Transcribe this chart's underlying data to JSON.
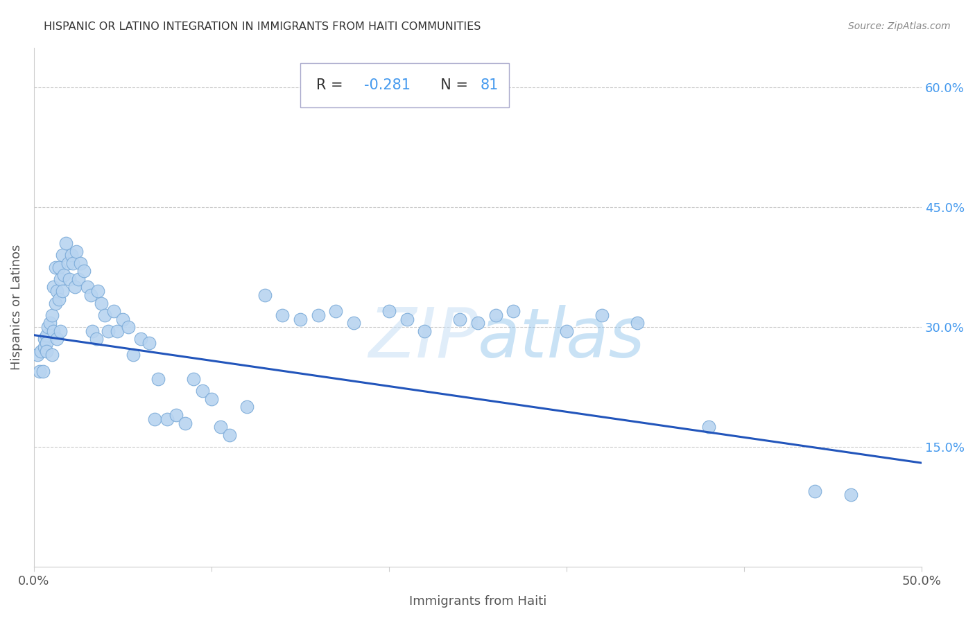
{
  "title": "HISPANIC OR LATINO INTEGRATION IN IMMIGRANTS FROM HAITI COMMUNITIES",
  "source": "Source: ZipAtlas.com",
  "xlabel": "Immigrants from Haiti",
  "ylabel": "Hispanics or Latinos",
  "watermark": "ZIPatlas",
  "R": -0.281,
  "N": 81,
  "xlim": [
    0.0,
    0.5
  ],
  "ylim": [
    0.0,
    0.65
  ],
  "xticks": [
    0.0,
    0.1,
    0.2,
    0.3,
    0.4,
    0.5
  ],
  "xtick_labels": [
    "0.0%",
    "",
    "",
    "",
    "",
    "50.0%"
  ],
  "ytick_positions": [
    0.15,
    0.3,
    0.45,
    0.6
  ],
  "ytick_labels": [
    "15.0%",
    "30.0%",
    "45.0%",
    "60.0%"
  ],
  "scatter_color": "#b8d4f0",
  "scatter_edge_color": "#7aaad8",
  "line_color": "#2255bb",
  "title_color": "#333333",
  "axis_label_color": "#555555",
  "tick_color": "#555555",
  "right_tick_color": "#4499ee",
  "source_color": "#888888",
  "annotation_box_facecolor": "#ffffff",
  "annotation_border_color": "#aaaacc",
  "R_label_color": "#333333",
  "RN_value_color": "#4499ee",
  "scatter_x": [
    0.002,
    0.003,
    0.004,
    0.005,
    0.006,
    0.006,
    0.007,
    0.007,
    0.007,
    0.008,
    0.009,
    0.01,
    0.01,
    0.011,
    0.011,
    0.012,
    0.012,
    0.013,
    0.013,
    0.014,
    0.014,
    0.015,
    0.015,
    0.016,
    0.016,
    0.017,
    0.018,
    0.019,
    0.02,
    0.021,
    0.022,
    0.023,
    0.024,
    0.025,
    0.026,
    0.028,
    0.03,
    0.032,
    0.033,
    0.035,
    0.036,
    0.038,
    0.04,
    0.042,
    0.045,
    0.047,
    0.05,
    0.053,
    0.056,
    0.06,
    0.065,
    0.068,
    0.07,
    0.075,
    0.08,
    0.085,
    0.09,
    0.095,
    0.1,
    0.105,
    0.11,
    0.12,
    0.13,
    0.14,
    0.15,
    0.16,
    0.17,
    0.18,
    0.2,
    0.21,
    0.22,
    0.24,
    0.25,
    0.26,
    0.27,
    0.3,
    0.32,
    0.34,
    0.38,
    0.44,
    0.46
  ],
  "scatter_y": [
    0.265,
    0.245,
    0.27,
    0.245,
    0.285,
    0.275,
    0.29,
    0.28,
    0.27,
    0.3,
    0.305,
    0.315,
    0.265,
    0.295,
    0.35,
    0.33,
    0.375,
    0.345,
    0.285,
    0.375,
    0.335,
    0.36,
    0.295,
    0.345,
    0.39,
    0.365,
    0.405,
    0.38,
    0.36,
    0.39,
    0.38,
    0.35,
    0.395,
    0.36,
    0.38,
    0.37,
    0.35,
    0.34,
    0.295,
    0.285,
    0.345,
    0.33,
    0.315,
    0.295,
    0.32,
    0.295,
    0.31,
    0.3,
    0.265,
    0.285,
    0.28,
    0.185,
    0.235,
    0.185,
    0.19,
    0.18,
    0.235,
    0.22,
    0.21,
    0.175,
    0.165,
    0.2,
    0.34,
    0.315,
    0.31,
    0.315,
    0.32,
    0.305,
    0.32,
    0.31,
    0.295,
    0.31,
    0.305,
    0.315,
    0.32,
    0.295,
    0.315,
    0.305,
    0.175,
    0.095,
    0.09
  ],
  "line_x": [
    0.0,
    0.5
  ],
  "line_y_start": 0.29,
  "line_y_end": 0.13
}
